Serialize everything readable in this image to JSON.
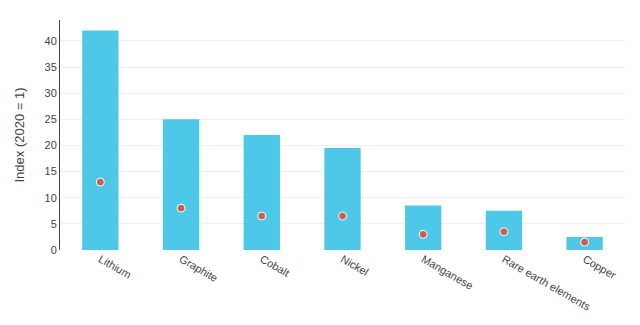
{
  "chart_data": {
    "type": "bar",
    "categories": [
      "Lithium",
      "Graphite",
      "Cobalt",
      "Nickel",
      "Manganese",
      "Rare earth elements",
      "Copper"
    ],
    "series": [
      {
        "type": "bar",
        "color": "#4DC8E8",
        "values": [
          42,
          25,
          22,
          19.5,
          8.5,
          7.5,
          2.5
        ]
      },
      {
        "type": "scatter",
        "marker": "circle",
        "color": "#C86050",
        "values": [
          13,
          8,
          6.5,
          6.5,
          3,
          3.5,
          1.5
        ]
      }
    ],
    "ylabel": "Index (2020 = 1)",
    "ylim": [
      0,
      44
    ],
    "yticks": [
      0,
      5,
      10,
      15,
      20,
      25,
      30,
      35,
      40
    ],
    "grid": true
  }
}
